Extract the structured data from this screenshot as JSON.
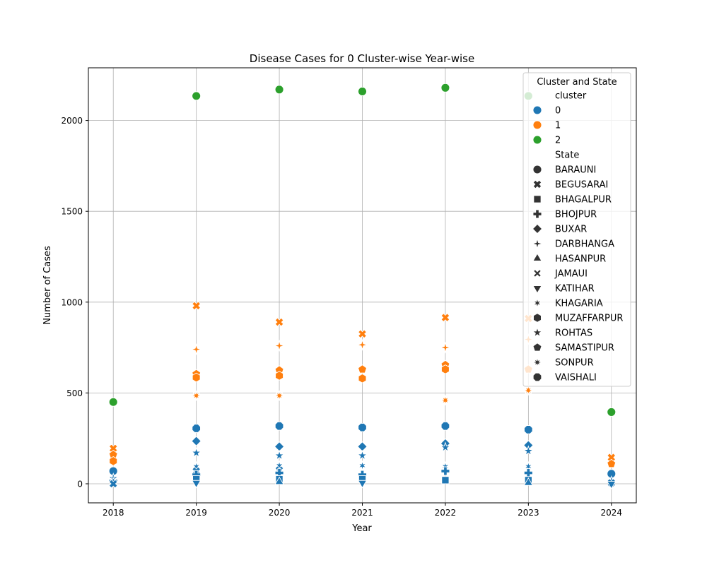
{
  "chart_data": {
    "type": "scatter",
    "title": "Disease Cases for 0 Cluster-wise Year-wise",
    "xlabel": "Year",
    "ylabel": "Number of Cases",
    "x_ticks": [
      2018,
      2019,
      2020,
      2021,
      2022,
      2023,
      2024
    ],
    "y_ticks": [
      0,
      500,
      1000,
      1500,
      2000
    ],
    "xlim": [
      2017.7,
      2024.3
    ],
    "ylim": [
      -105,
      2290
    ],
    "grid": true,
    "legend": {
      "title": "Cluster and State",
      "placement": "upper-right",
      "hue_title": "cluster",
      "style_title": "State",
      "clusters": [
        {
          "label": "0",
          "color": "#1f77b4"
        },
        {
          "label": "1",
          "color": "#ff7f0e"
        },
        {
          "label": "2",
          "color": "#2ca02c"
        }
      ],
      "states": [
        {
          "label": "BARAUNI",
          "marker": "circle"
        },
        {
          "label": "BEGUSARAI",
          "marker": "x"
        },
        {
          "label": "BHAGALPUR",
          "marker": "square"
        },
        {
          "label": "BHOJPUR",
          "marker": "plus"
        },
        {
          "label": "BUXAR",
          "marker": "diamond"
        },
        {
          "label": "DARBHANGA",
          "marker": "star4"
        },
        {
          "label": "HASANPUR",
          "marker": "triangle-up"
        },
        {
          "label": "JAMAUI",
          "marker": "x-thin"
        },
        {
          "label": "KATIHAR",
          "marker": "triangle-down"
        },
        {
          "label": "KHAGARIA",
          "marker": "star6"
        },
        {
          "label": "MUZAFFARPUR",
          "marker": "hexagon"
        },
        {
          "label": "ROHTAS",
          "marker": "star5"
        },
        {
          "label": "SAMASTIPUR",
          "marker": "pentagon"
        },
        {
          "label": "SONPUR",
          "marker": "star8"
        },
        {
          "label": "VAISHALI",
          "marker": "octagon"
        }
      ]
    },
    "points": [
      {
        "x": 2018,
        "y": 450,
        "cluster": "2",
        "state": "BARAUNI"
      },
      {
        "x": 2019,
        "y": 2135,
        "cluster": "2",
        "state": "BARAUNI"
      },
      {
        "x": 2020,
        "y": 2170,
        "cluster": "2",
        "state": "BARAUNI"
      },
      {
        "x": 2021,
        "y": 2160,
        "cluster": "2",
        "state": "BARAUNI"
      },
      {
        "x": 2022,
        "y": 2180,
        "cluster": "2",
        "state": "BARAUNI"
      },
      {
        "x": 2023,
        "y": 2135,
        "cluster": "2",
        "state": "BARAUNI"
      },
      {
        "x": 2024,
        "y": 395,
        "cluster": "2",
        "state": "BARAUNI"
      },
      {
        "x": 2018,
        "y": 195,
        "cluster": "1",
        "state": "BEGUSARAI"
      },
      {
        "x": 2018,
        "y": 160,
        "cluster": "1",
        "state": "SAMASTIPUR"
      },
      {
        "x": 2018,
        "y": 125,
        "cluster": "1",
        "state": "MUZAFFARPUR"
      },
      {
        "x": 2019,
        "y": 980,
        "cluster": "1",
        "state": "BEGUSARAI"
      },
      {
        "x": 2019,
        "y": 740,
        "cluster": "1",
        "state": "DARBHANGA"
      },
      {
        "x": 2019,
        "y": 605,
        "cluster": "1",
        "state": "SAMASTIPUR"
      },
      {
        "x": 2019,
        "y": 585,
        "cluster": "1",
        "state": "MUZAFFARPUR"
      },
      {
        "x": 2019,
        "y": 485,
        "cluster": "1",
        "state": "SONPUR"
      },
      {
        "x": 2020,
        "y": 890,
        "cluster": "1",
        "state": "BEGUSARAI"
      },
      {
        "x": 2020,
        "y": 760,
        "cluster": "1",
        "state": "DARBHANGA"
      },
      {
        "x": 2020,
        "y": 625,
        "cluster": "1",
        "state": "SAMASTIPUR"
      },
      {
        "x": 2020,
        "y": 595,
        "cluster": "1",
        "state": "MUZAFFARPUR"
      },
      {
        "x": 2020,
        "y": 485,
        "cluster": "1",
        "state": "SONPUR"
      },
      {
        "x": 2021,
        "y": 825,
        "cluster": "1",
        "state": "BEGUSARAI"
      },
      {
        "x": 2021,
        "y": 765,
        "cluster": "1",
        "state": "DARBHANGA"
      },
      {
        "x": 2021,
        "y": 630,
        "cluster": "1",
        "state": "SAMASTIPUR"
      },
      {
        "x": 2021,
        "y": 580,
        "cluster": "1",
        "state": "MUZAFFARPUR"
      },
      {
        "x": 2022,
        "y": 915,
        "cluster": "1",
        "state": "BEGUSARAI"
      },
      {
        "x": 2022,
        "y": 750,
        "cluster": "1",
        "state": "DARBHANGA"
      },
      {
        "x": 2022,
        "y": 655,
        "cluster": "1",
        "state": "SAMASTIPUR"
      },
      {
        "x": 2022,
        "y": 630,
        "cluster": "1",
        "state": "MUZAFFARPUR"
      },
      {
        "x": 2022,
        "y": 460,
        "cluster": "1",
        "state": "SONPUR"
      },
      {
        "x": 2023,
        "y": 910,
        "cluster": "1",
        "state": "BEGUSARAI"
      },
      {
        "x": 2023,
        "y": 795,
        "cluster": "1",
        "state": "DARBHANGA"
      },
      {
        "x": 2023,
        "y": 630,
        "cluster": "1",
        "state": "SAMASTIPUR"
      },
      {
        "x": 2023,
        "y": 515,
        "cluster": "1",
        "state": "SONPUR"
      },
      {
        "x": 2024,
        "y": 145,
        "cluster": "1",
        "state": "BEGUSARAI"
      },
      {
        "x": 2024,
        "y": 110,
        "cluster": "1",
        "state": "SAMASTIPUR"
      },
      {
        "x": 2018,
        "y": 70,
        "cluster": "0",
        "state": "BARAUNI"
      },
      {
        "x": 2018,
        "y": 30,
        "cluster": "0",
        "state": "ROHTAS"
      },
      {
        "x": 2018,
        "y": 15,
        "cluster": "0",
        "state": "BHOJPUR"
      },
      {
        "x": 2018,
        "y": 5,
        "cluster": "0",
        "state": "HASANPUR"
      },
      {
        "x": 2018,
        "y": 0,
        "cluster": "0",
        "state": "BEGUSARAI"
      },
      {
        "x": 2019,
        "y": 305,
        "cluster": "0",
        "state": "VAISHALI"
      },
      {
        "x": 2019,
        "y": 235,
        "cluster": "0",
        "state": "BUXAR"
      },
      {
        "x": 2019,
        "y": 170,
        "cluster": "0",
        "state": "ROHTAS"
      },
      {
        "x": 2019,
        "y": 95,
        "cluster": "0",
        "state": "KHAGARIA"
      },
      {
        "x": 2019,
        "y": 70,
        "cluster": "0",
        "state": "BEGUSARAI"
      },
      {
        "x": 2019,
        "y": 50,
        "cluster": "0",
        "state": "BHOJPUR"
      },
      {
        "x": 2019,
        "y": 25,
        "cluster": "0",
        "state": "BHAGALPUR"
      },
      {
        "x": 2019,
        "y": 5,
        "cluster": "0",
        "state": "KATIHAR"
      },
      {
        "x": 2020,
        "y": 318,
        "cluster": "0",
        "state": "VAISHALI"
      },
      {
        "x": 2020,
        "y": 205,
        "cluster": "0",
        "state": "BUXAR"
      },
      {
        "x": 2020,
        "y": 155,
        "cluster": "0",
        "state": "ROHTAS"
      },
      {
        "x": 2020,
        "y": 100,
        "cluster": "0",
        "state": "KHAGARIA"
      },
      {
        "x": 2020,
        "y": 75,
        "cluster": "0",
        "state": "BEGUSARAI"
      },
      {
        "x": 2020,
        "y": 60,
        "cluster": "0",
        "state": "BHOJPUR"
      },
      {
        "x": 2020,
        "y": 25,
        "cluster": "0",
        "state": "BHAGALPUR"
      },
      {
        "x": 2020,
        "y": 10,
        "cluster": "0",
        "state": "HASANPUR"
      },
      {
        "x": 2021,
        "y": 310,
        "cluster": "0",
        "state": "VAISHALI"
      },
      {
        "x": 2021,
        "y": 205,
        "cluster": "0",
        "state": "BUXAR"
      },
      {
        "x": 2021,
        "y": 155,
        "cluster": "0",
        "state": "ROHTAS"
      },
      {
        "x": 2021,
        "y": 100,
        "cluster": "0",
        "state": "KHAGARIA"
      },
      {
        "x": 2021,
        "y": 50,
        "cluster": "0",
        "state": "BHOJPUR"
      },
      {
        "x": 2021,
        "y": 25,
        "cluster": "0",
        "state": "BHAGALPUR"
      },
      {
        "x": 2021,
        "y": 5,
        "cluster": "0",
        "state": "KATIHAR"
      },
      {
        "x": 2022,
        "y": 318,
        "cluster": "0",
        "state": "VAISHALI"
      },
      {
        "x": 2022,
        "y": 222,
        "cluster": "0",
        "state": "BUXAR"
      },
      {
        "x": 2022,
        "y": 200,
        "cluster": "0",
        "state": "ROHTAS"
      },
      {
        "x": 2022,
        "y": 95,
        "cluster": "0",
        "state": "KHAGARIA"
      },
      {
        "x": 2022,
        "y": 70,
        "cluster": "0",
        "state": "BHOJPUR"
      },
      {
        "x": 2022,
        "y": 20,
        "cluster": "0",
        "state": "BHAGALPUR"
      },
      {
        "x": 2023,
        "y": 298,
        "cluster": "0",
        "state": "VAISHALI"
      },
      {
        "x": 2023,
        "y": 212,
        "cluster": "0",
        "state": "BUXAR"
      },
      {
        "x": 2023,
        "y": 180,
        "cluster": "0",
        "state": "ROHTAS"
      },
      {
        "x": 2023,
        "y": 95,
        "cluster": "0",
        "state": "KHAGARIA"
      },
      {
        "x": 2023,
        "y": 60,
        "cluster": "0",
        "state": "BHOJPUR"
      },
      {
        "x": 2023,
        "y": 20,
        "cluster": "0",
        "state": "BHAGALPUR"
      },
      {
        "x": 2023,
        "y": 5,
        "cluster": "0",
        "state": "HASANPUR"
      },
      {
        "x": 2024,
        "y": 55,
        "cluster": "0",
        "state": "BARAUNI"
      },
      {
        "x": 2024,
        "y": 15,
        "cluster": "0",
        "state": "ROHTAS"
      },
      {
        "x": 2024,
        "y": 5,
        "cluster": "0",
        "state": "BEGUSARAI"
      },
      {
        "x": 2024,
        "y": 0,
        "cluster": "0",
        "state": "KATIHAR"
      }
    ]
  }
}
